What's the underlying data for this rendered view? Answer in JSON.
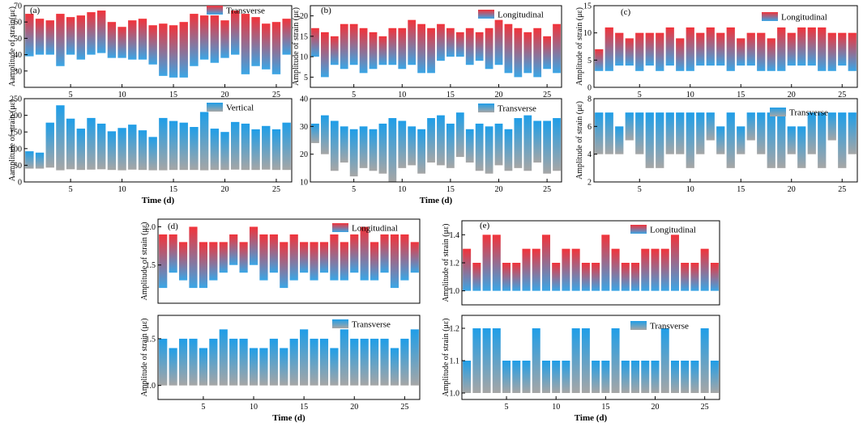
{
  "colors": {
    "red_top": "#f2333a",
    "red_to_blue_bottom": "#3aa6e6",
    "blue_top": "#1f9ee8",
    "gray_bottom": "#a6a6a6",
    "axis": "#000000"
  },
  "chart_data": [
    {
      "panel_letter": "(a)",
      "type": "floating-bar",
      "ylabel": "Aamplitude of strain(με)",
      "xlabel": "",
      "legend": "Transverse",
      "legend_gradient": "red",
      "ylim": [
        20,
        70
      ],
      "yticks": [
        30,
        40,
        50,
        60,
        70
      ],
      "xlim": [
        0.5,
        26.5
      ],
      "xticks": [
        5,
        10,
        15,
        20,
        25
      ],
      "x": [
        1,
        2,
        3,
        4,
        5,
        6,
        7,
        8,
        9,
        10,
        11,
        12,
        13,
        14,
        15,
        16,
        17,
        18,
        19,
        20,
        21,
        22,
        23,
        24,
        25,
        26
      ],
      "high": [
        65,
        62,
        61,
        65,
        63,
        64,
        66,
        67,
        60,
        57,
        61,
        62,
        58,
        59,
        58,
        60,
        65,
        64,
        64,
        61,
        67,
        65,
        63,
        59,
        60,
        62
      ],
      "low": [
        39,
        40,
        40,
        33,
        40,
        37,
        40,
        41,
        38,
        38,
        37,
        37,
        34,
        27,
        26,
        26,
        33,
        37,
        35,
        38,
        40,
        28,
        33,
        31,
        28,
        40
      ]
    },
    {
      "panel_letter": "(b)",
      "type": "floating-bar",
      "ylabel": "Amplitude of strain (με)",
      "xlabel": "",
      "legend": "Longitudinal",
      "legend_gradient": "red",
      "ylim": [
        2.5,
        22.5
      ],
      "yticks": [
        5,
        10,
        15,
        20
      ],
      "xlim": [
        0.5,
        26.5
      ],
      "xticks": [
        5,
        10,
        15,
        20,
        25
      ],
      "x": [
        1,
        2,
        3,
        4,
        5,
        6,
        7,
        8,
        9,
        10,
        11,
        12,
        13,
        14,
        15,
        16,
        17,
        18,
        19,
        20,
        21,
        22,
        23,
        24,
        25,
        26
      ],
      "high": [
        17,
        16,
        15,
        18,
        18,
        17,
        16,
        15,
        17,
        17,
        19,
        18,
        17,
        18,
        17,
        16,
        17,
        16,
        17,
        19,
        18,
        17,
        16,
        17,
        15,
        18
      ],
      "low": [
        10,
        5,
        8,
        7,
        8,
        6,
        7,
        8,
        8,
        7,
        8,
        6,
        6,
        9,
        10,
        10,
        8,
        9,
        7,
        8,
        6,
        5,
        6,
        5,
        7,
        6
      ]
    },
    {
      "panel_letter": "(c)",
      "type": "floating-bar",
      "ylabel": "Amplitude of strain (με)",
      "xlabel": "",
      "legend": "Longitudinal",
      "legend_gradient": "red",
      "ylim": [
        0,
        15
      ],
      "yticks": [
        0,
        5,
        10,
        15
      ],
      "xlim": [
        0.5,
        26.5
      ],
      "xticks": [
        5,
        10,
        15,
        20,
        25
      ],
      "x": [
        1,
        2,
        3,
        4,
        5,
        6,
        7,
        8,
        9,
        10,
        11,
        12,
        13,
        14,
        15,
        16,
        17,
        18,
        19,
        20,
        21,
        22,
        23,
        24,
        25,
        26
      ],
      "high": [
        7,
        11,
        10,
        9,
        10,
        10,
        10,
        11,
        9,
        11,
        10,
        11,
        10,
        11,
        9,
        10,
        10,
        9,
        11,
        10,
        11,
        11,
        11,
        10,
        10,
        10
      ],
      "low": [
        3,
        3,
        4,
        4,
        3,
        4,
        3,
        4,
        3,
        3,
        4,
        4,
        4,
        3,
        4,
        4,
        3,
        3,
        3,
        4,
        4,
        4,
        3,
        3,
        4,
        3
      ]
    },
    {
      "panel_letter": "",
      "type": "floating-bar",
      "ylabel": "Aamplitude of strain (με)",
      "xlabel": "Time (d)",
      "legend": "Vertical",
      "legend_gradient": "blue",
      "ylim": [
        0,
        250
      ],
      "yticks": [
        0,
        50,
        100,
        150,
        200,
        250
      ],
      "xlim": [
        0.5,
        26.5
      ],
      "xticks": [
        5,
        10,
        15,
        20,
        25
      ],
      "x": [
        1,
        2,
        3,
        4,
        5,
        6,
        7,
        8,
        9,
        10,
        11,
        12,
        13,
        14,
        15,
        16,
        17,
        18,
        19,
        20,
        21,
        22,
        23,
        24,
        25,
        26
      ],
      "high": [
        92,
        88,
        178,
        230,
        190,
        160,
        192,
        175,
        152,
        162,
        172,
        155,
        135,
        192,
        183,
        178,
        165,
        210,
        160,
        150,
        180,
        175,
        158,
        168,
        158,
        178
      ],
      "low": [
        40,
        40,
        43,
        35,
        38,
        36,
        37,
        38,
        36,
        35,
        37,
        36,
        35,
        35,
        36,
        36,
        36,
        35,
        36,
        36,
        37,
        36,
        36,
        37,
        36,
        36
      ]
    },
    {
      "panel_letter": "",
      "type": "floating-bar",
      "ylabel": "",
      "xlabel": "Time (d)",
      "legend": "Transverse",
      "legend_gradient": "blue",
      "ylim": [
        10,
        40
      ],
      "yticks": [
        10,
        20,
        30,
        40
      ],
      "xlim": [
        0.5,
        26.5
      ],
      "xticks": [
        5,
        10,
        15,
        20,
        25
      ],
      "x": [
        1,
        2,
        3,
        4,
        5,
        6,
        7,
        8,
        9,
        10,
        11,
        12,
        13,
        14,
        15,
        16,
        17,
        18,
        19,
        20,
        21,
        22,
        23,
        24,
        25,
        26
      ],
      "high": [
        31,
        34,
        32,
        30,
        29,
        30,
        29,
        31,
        33,
        32,
        30,
        29,
        33,
        34,
        31,
        35,
        29,
        31,
        30,
        31,
        29,
        33,
        34,
        32,
        32,
        33
      ],
      "low": [
        24,
        20,
        14,
        17,
        12,
        15,
        14,
        13,
        10,
        15,
        16,
        13,
        17,
        16,
        15,
        19,
        17,
        14,
        13,
        16,
        14,
        15,
        14,
        17,
        13,
        14
      ]
    },
    {
      "panel_letter": "",
      "type": "floating-bar",
      "ylabel": "Amplitude of strain (με)",
      "xlabel": "",
      "legend": "Transverse",
      "legend_gradient": "blue",
      "ylim": [
        2,
        8
      ],
      "yticks": [
        2,
        4,
        6,
        8
      ],
      "xlim": [
        0.5,
        26.5
      ],
      "xticks": [
        5,
        10,
        15,
        20,
        25
      ],
      "x": [
        1,
        2,
        3,
        4,
        5,
        6,
        7,
        8,
        9,
        10,
        11,
        12,
        13,
        14,
        15,
        16,
        17,
        18,
        19,
        20,
        21,
        22,
        23,
        24,
        25,
        26
      ],
      "high": [
        7,
        7,
        6,
        7,
        7,
        7,
        7,
        7,
        7,
        7,
        7,
        7,
        6,
        7,
        6,
        7,
        7,
        7,
        7,
        6,
        6,
        7,
        7,
        7,
        7,
        7
      ],
      "low": [
        4,
        4,
        4,
        5,
        4,
        3,
        3,
        4,
        4,
        3,
        4,
        5,
        4,
        3,
        4,
        5,
        4,
        3,
        3,
        4,
        3,
        4,
        3,
        5,
        3,
        4
      ]
    },
    {
      "panel_letter": "(d)",
      "type": "floating-bar",
      "ylabel": "Amplitude of strain (με)",
      "xlabel": "",
      "legend": "Longitudinal",
      "legend_gradient": "red",
      "ylim": [
        1.0,
        2.1
      ],
      "yticks": [
        1.5,
        2.0
      ],
      "xlim": [
        0.5,
        26.5
      ],
      "xticks": [],
      "x": [
        1,
        2,
        3,
        4,
        5,
        6,
        7,
        8,
        9,
        10,
        11,
        12,
        13,
        14,
        15,
        16,
        17,
        18,
        19,
        20,
        21,
        22,
        23,
        24,
        25,
        26
      ],
      "high": [
        1.9,
        1.9,
        1.8,
        2.0,
        1.8,
        1.8,
        1.8,
        1.9,
        1.8,
        2.0,
        1.9,
        1.9,
        1.8,
        1.9,
        1.8,
        1.8,
        1.8,
        1.9,
        1.8,
        1.9,
        2.0,
        1.8,
        1.9,
        1.9,
        1.9,
        1.8
      ],
      "low": [
        1.2,
        1.4,
        1.3,
        1.2,
        1.2,
        1.3,
        1.4,
        1.5,
        1.4,
        1.5,
        1.3,
        1.4,
        1.2,
        1.3,
        1.4,
        1.3,
        1.4,
        1.3,
        1.3,
        1.4,
        1.3,
        1.3,
        1.4,
        1.2,
        1.3,
        1.4
      ]
    },
    {
      "panel_letter": "",
      "type": "floating-bar",
      "ylabel": "Amplitude of strain (με)",
      "xlabel": "Time (d)",
      "legend": "Transverse",
      "legend_gradient": "blue",
      "ylim": [
        0.85,
        1.75
      ],
      "yticks": [
        1.0,
        1.5
      ],
      "xlim": [
        0.5,
        26.5
      ],
      "xticks": [
        5,
        10,
        15,
        20,
        25
      ],
      "x": [
        1,
        2,
        3,
        4,
        5,
        6,
        7,
        8,
        9,
        10,
        11,
        12,
        13,
        14,
        15,
        16,
        17,
        18,
        19,
        20,
        21,
        22,
        23,
        24,
        25,
        26
      ],
      "high": [
        1.5,
        1.4,
        1.5,
        1.5,
        1.4,
        1.5,
        1.6,
        1.5,
        1.5,
        1.4,
        1.4,
        1.5,
        1.4,
        1.5,
        1.6,
        1.5,
        1.5,
        1.4,
        1.6,
        1.5,
        1.5,
        1.5,
        1.5,
        1.4,
        1.5,
        1.6
      ],
      "low": [
        1.0,
        1.0,
        1.0,
        1.0,
        1.0,
        1.0,
        1.0,
        1.0,
        1.0,
        1.0,
        1.0,
        1.0,
        1.0,
        1.0,
        1.0,
        1.0,
        1.0,
        1.0,
        1.0,
        1.0,
        1.0,
        1.0,
        1.0,
        1.0,
        1.0,
        1.0
      ]
    },
    {
      "panel_letter": "(e)",
      "type": "floating-bar",
      "ylabel": "Amplitude of strain (με)",
      "xlabel": "",
      "legend": "Longitudinal",
      "legend_gradient": "red",
      "ylim": [
        0.9,
        1.5
      ],
      "yticks": [
        1.0,
        1.2,
        1.4
      ],
      "xlim": [
        0.5,
        26.5
      ],
      "xticks": [],
      "x": [
        1,
        2,
        3,
        4,
        5,
        6,
        7,
        8,
        9,
        10,
        11,
        12,
        13,
        14,
        15,
        16,
        17,
        18,
        19,
        20,
        21,
        22,
        23,
        24,
        25,
        26
      ],
      "high": [
        1.3,
        1.2,
        1.4,
        1.4,
        1.2,
        1.2,
        1.3,
        1.3,
        1.4,
        1.2,
        1.3,
        1.3,
        1.2,
        1.2,
        1.4,
        1.3,
        1.2,
        1.2,
        1.3,
        1.3,
        1.3,
        1.4,
        1.2,
        1.2,
        1.3,
        1.2
      ],
      "low": [
        1.0,
        1.0,
        1.0,
        1.0,
        1.0,
        1.0,
        1.0,
        1.0,
        1.0,
        1.0,
        1.0,
        1.0,
        1.0,
        1.0,
        1.0,
        1.0,
        1.0,
        1.0,
        1.0,
        1.0,
        1.0,
        1.0,
        1.0,
        1.0,
        1.0,
        1.0
      ]
    },
    {
      "panel_letter": "",
      "type": "floating-bar",
      "ylabel": "Amplitude of strain (με)",
      "xlabel": "Time (d)",
      "legend": "Transverse",
      "legend_gradient": "blue",
      "ylim": [
        0.98,
        1.24
      ],
      "yticks": [
        1.0,
        1.1,
        1.2
      ],
      "xlim": [
        0.5,
        26.5
      ],
      "xticks": [
        5,
        10,
        15,
        20,
        25
      ],
      "x": [
        1,
        2,
        3,
        4,
        5,
        6,
        7,
        8,
        9,
        10,
        11,
        12,
        13,
        14,
        15,
        16,
        17,
        18,
        19,
        20,
        21,
        22,
        23,
        24,
        25,
        26
      ],
      "high": [
        1.1,
        1.2,
        1.2,
        1.2,
        1.1,
        1.1,
        1.1,
        1.2,
        1.1,
        1.1,
        1.1,
        1.2,
        1.2,
        1.1,
        1.1,
        1.2,
        1.1,
        1.1,
        1.1,
        1.1,
        1.2,
        1.1,
        1.1,
        1.1,
        1.2,
        1.1
      ],
      "low": [
        1.0,
        1.0,
        1.0,
        1.0,
        1.0,
        1.0,
        1.0,
        1.0,
        1.0,
        1.0,
        1.0,
        1.0,
        1.0,
        1.0,
        1.0,
        1.0,
        1.0,
        1.0,
        1.0,
        1.0,
        1.0,
        1.0,
        1.0,
        1.0,
        1.0,
        1.0
      ]
    }
  ]
}
